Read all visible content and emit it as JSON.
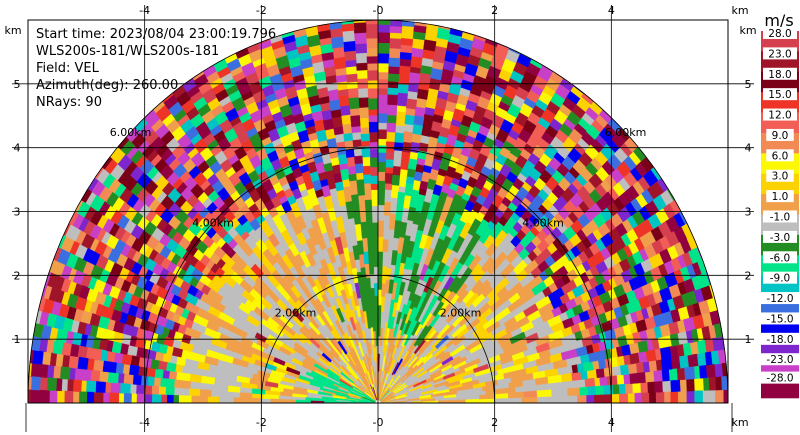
{
  "header": {
    "start_time": "Start time: 2023/08/04 23:00:19.796",
    "instrument": "WLS200s-181/WLS200s-181",
    "field": "Field: VEL",
    "azimuth": "Azimuth(deg): 260.00",
    "nrays": "NRays: 90"
  },
  "chart_data": {
    "type": "heatmap",
    "projection": "ppi-upper-half",
    "x_unit": "km",
    "y_unit": "km",
    "xlim": [
      -6.0,
      6.0
    ],
    "ylim": [
      0.0,
      6.0
    ],
    "x_ticks": [
      -4,
      -2,
      0,
      2,
      4
    ],
    "x_tick_labels": [
      "-4",
      "-2",
      "-0",
      "2",
      "4"
    ],
    "y_ticks": [
      1,
      2,
      3,
      4,
      5
    ],
    "y_tick_labels": [
      "1",
      "2",
      "3",
      "4",
      "5"
    ],
    "grid": true,
    "max_range_km": 6.0,
    "range_rings": [
      {
        "radius_km": 2.0,
        "label": "2.00km"
      },
      {
        "radius_km": 4.0,
        "label": "4.00km"
      },
      {
        "radius_km": 6.0,
        "label": "6.00km"
      }
    ],
    "colorbar": {
      "unit": "m/s",
      "tick_labels": [
        "28.0",
        "23.0",
        "18.0",
        "15.0",
        "12.0",
        "9.0",
        "6.0",
        "3.0",
        "1.0",
        "-1.0",
        "-3.0",
        "-6.0",
        "-9.0",
        "-12.0",
        "-15.0",
        "-18.0",
        "-23.0",
        "-28.0"
      ],
      "colors": [
        "#d6404e",
        "#a0142a",
        "#7a0018",
        "#ee3426",
        "#f25d56",
        "#f28a55",
        "#fcf803",
        "#fcd200",
        "#f0a04b",
        "#bebebe",
        "#238c23",
        "#00e489",
        "#00c4c4",
        "#3b6fe0",
        "#0000f0",
        "#7d26cd",
        "#c840c8",
        "#91003f"
      ]
    }
  }
}
